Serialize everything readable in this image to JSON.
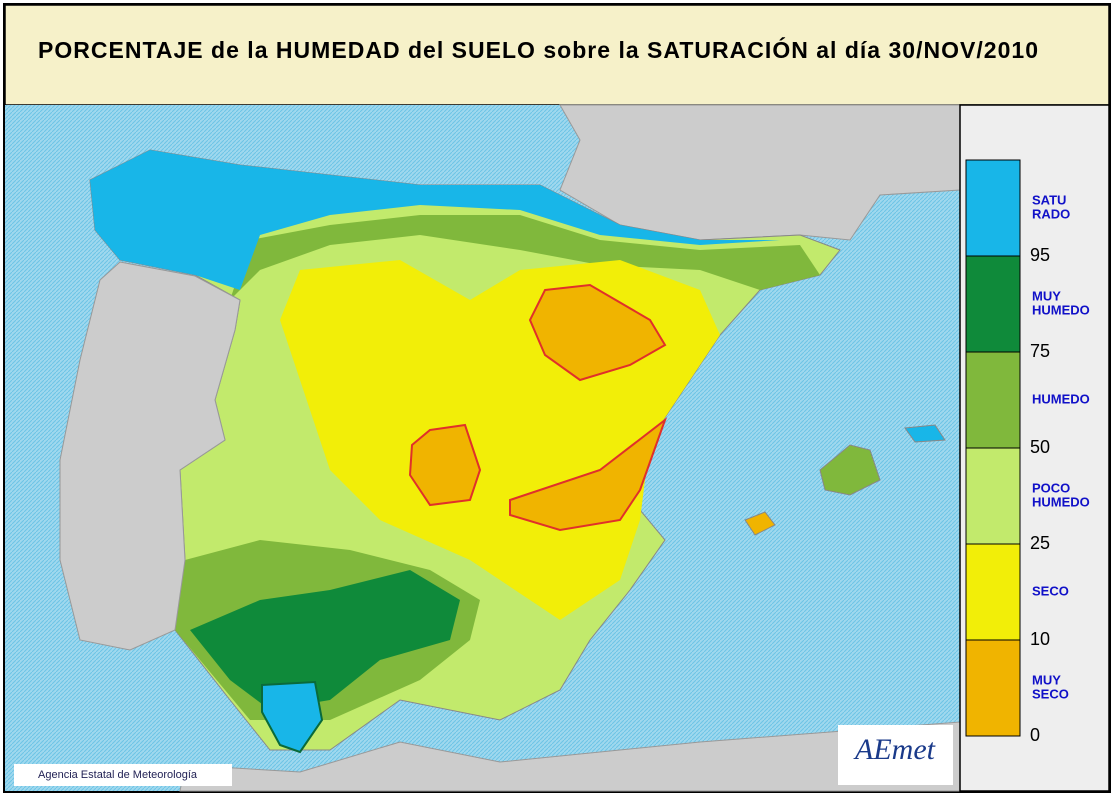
{
  "title": "PORCENTAJE de la HUMEDAD del SUELO sobre la SATURACIÓN al día 30/NOV/2010",
  "legend": [
    {
      "label": [
        "SATU",
        "RADO"
      ],
      "color": "#18b6e8",
      "threshold": "95"
    },
    {
      "label": [
        "MUY",
        "HUMEDO"
      ],
      "color": "#0f8a3a",
      "threshold": "75"
    },
    {
      "label": [
        "HUMEDO"
      ],
      "color": "#80b83c",
      "threshold": "50"
    },
    {
      "label": [
        "POCO",
        "HUMEDO"
      ],
      "color": "#c2ea6c",
      "threshold": "25"
    },
    {
      "label": [
        "SECO"
      ],
      "color": "#f2ee08",
      "threshold": "10"
    },
    {
      "label": [
        "MUY",
        "SECO"
      ],
      "color": "#f0b400",
      "threshold": "0"
    }
  ],
  "credit": "Agencia Estatal de Meteorología",
  "logo": "AEmet"
}
